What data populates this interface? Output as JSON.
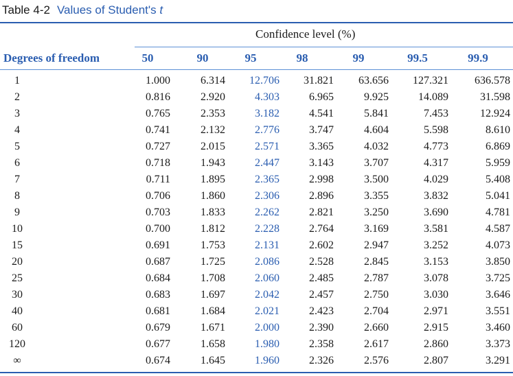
{
  "caption": {
    "number": "Table 4-2",
    "title_prefix": "Values of Student's",
    "title_symbol": "t"
  },
  "confidence_header": "Confidence level (%)",
  "dof_header": "Degrees of freedom",
  "columns": [
    "50",
    "90",
    "95",
    "98",
    "99",
    "99.5",
    "99.9"
  ],
  "highlight_color": "#2a5db0",
  "rows": [
    {
      "df": "1",
      "values": [
        "1.000",
        "6.314",
        "12.706",
        "31.821",
        "63.656",
        "127.321",
        "636.578"
      ]
    },
    {
      "df": "2",
      "values": [
        "0.816",
        "2.920",
        "4.303",
        "6.965",
        "9.925",
        "14.089",
        "31.598"
      ]
    },
    {
      "df": "3",
      "values": [
        "0.765",
        "2.353",
        "3.182",
        "4.541",
        "5.841",
        "7.453",
        "12.924"
      ]
    },
    {
      "df": "4",
      "values": [
        "0.741",
        "2.132",
        "2.776",
        "3.747",
        "4.604",
        "5.598",
        "8.610"
      ]
    },
    {
      "df": "5",
      "values": [
        "0.727",
        "2.015",
        "2.571",
        "3.365",
        "4.032",
        "4.773",
        "6.869"
      ]
    },
    {
      "df": "6",
      "values": [
        "0.718",
        "1.943",
        "2.447",
        "3.143",
        "3.707",
        "4.317",
        "5.959"
      ]
    },
    {
      "df": "7",
      "values": [
        "0.711",
        "1.895",
        "2.365",
        "2.998",
        "3.500",
        "4.029",
        "5.408"
      ]
    },
    {
      "df": "8",
      "values": [
        "0.706",
        "1.860",
        "2.306",
        "2.896",
        "3.355",
        "3.832",
        "5.041"
      ]
    },
    {
      "df": "9",
      "values": [
        "0.703",
        "1.833",
        "2.262",
        "2.821",
        "3.250",
        "3.690",
        "4.781"
      ]
    },
    {
      "df": "10",
      "values": [
        "0.700",
        "1.812",
        "2.228",
        "2.764",
        "3.169",
        "3.581",
        "4.587"
      ]
    },
    {
      "df": "15",
      "values": [
        "0.691",
        "1.753",
        "2.131",
        "2.602",
        "2.947",
        "3.252",
        "4.073"
      ]
    },
    {
      "df": "20",
      "values": [
        "0.687",
        "1.725",
        "2.086",
        "2.528",
        "2.845",
        "3.153",
        "3.850"
      ]
    },
    {
      "df": "25",
      "values": [
        "0.684",
        "1.708",
        "2.060",
        "2.485",
        "2.787",
        "3.078",
        "3.725"
      ]
    },
    {
      "df": "30",
      "values": [
        "0.683",
        "1.697",
        "2.042",
        "2.457",
        "2.750",
        "3.030",
        "3.646"
      ]
    },
    {
      "df": "40",
      "values": [
        "0.681",
        "1.684",
        "2.021",
        "2.423",
        "2.704",
        "2.971",
        "3.551"
      ]
    },
    {
      "df": "60",
      "values": [
        "0.679",
        "1.671",
        "2.000",
        "2.390",
        "2.660",
        "2.915",
        "3.460"
      ]
    },
    {
      "df": "120",
      "values": [
        "0.677",
        "1.658",
        "1.980",
        "2.358",
        "2.617",
        "2.860",
        "3.373"
      ]
    },
    {
      "df": "∞",
      "values": [
        "0.674",
        "1.645",
        "1.960",
        "2.326",
        "2.576",
        "2.807",
        "3.291"
      ]
    }
  ]
}
